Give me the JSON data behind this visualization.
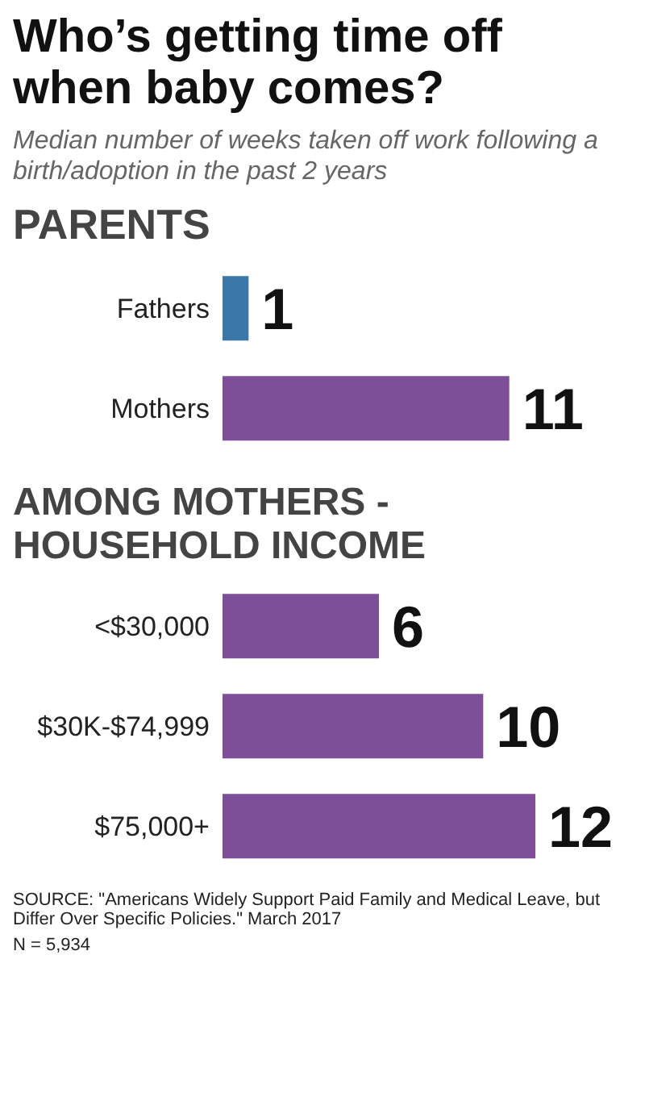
{
  "chart_data": [
    {
      "type": "bar",
      "orientation": "horizontal",
      "title": "Who’s getting time off when baby comes?",
      "subtitle": "Median number of weeks taken off work following a birth/adoption in the past 2 years",
      "annotations": [
        "PARENTS"
      ],
      "categories": [
        "Fathers",
        "Mothers"
      ],
      "values": [
        1,
        11
      ],
      "colors": [
        "#3b78a8",
        "#7d4f98"
      ],
      "data_labels": true
    },
    {
      "type": "bar",
      "orientation": "horizontal",
      "title": "AMONG MOTHERS - HOUSEHOLD INCOME",
      "annotations": [
        "SOURCE: \"Americans Widely Support Paid Family and Medical Leave, but Differ Over Specific Policies.\" March 2017",
        "N = 5,934"
      ],
      "categories": [
        "<$30,000",
        "$30K-$74,999",
        "$75,000+"
      ],
      "values": [
        6,
        10,
        12
      ],
      "colors": [
        "#7d4f98",
        "#7d4f98",
        "#7d4f98"
      ],
      "data_labels": true
    }
  ]
}
